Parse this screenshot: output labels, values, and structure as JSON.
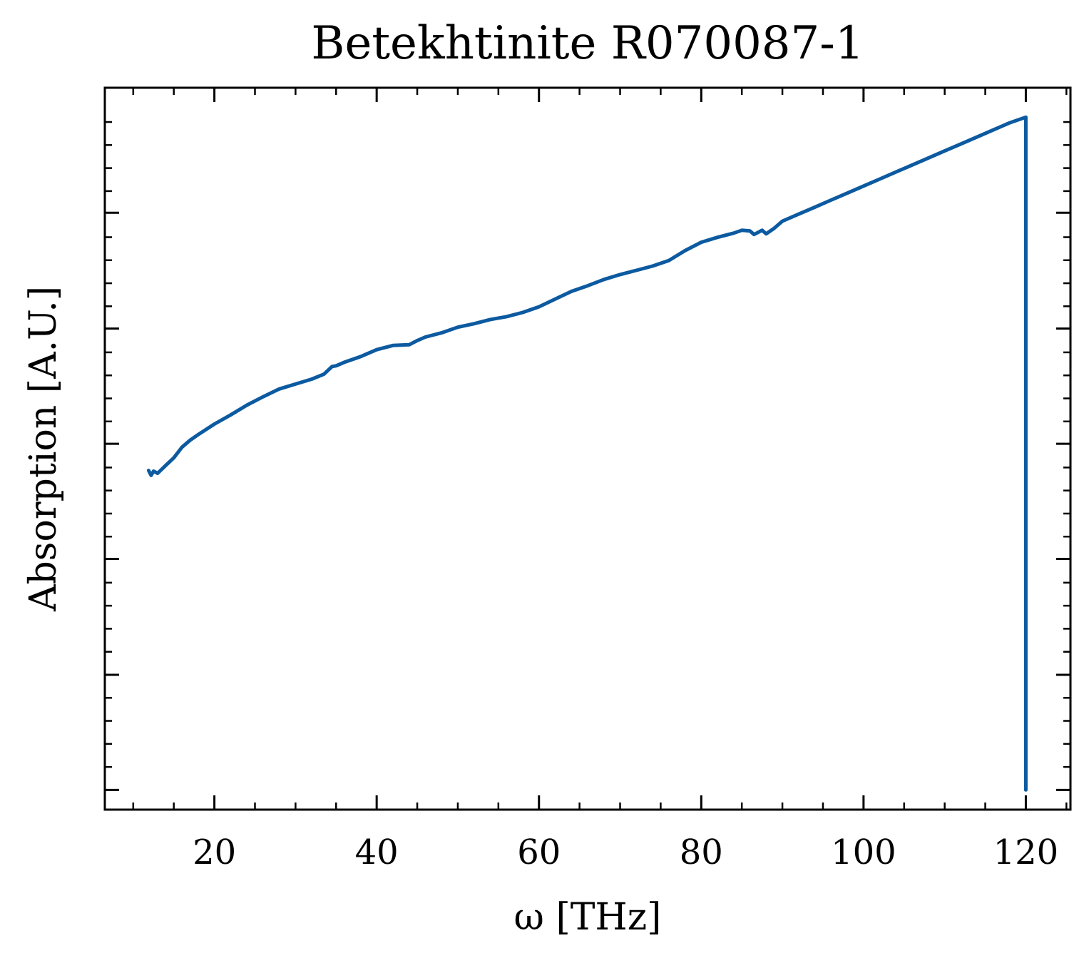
{
  "chart_data": {
    "type": "line",
    "title": "Betekhtinite R070087-1",
    "xlabel": "ω [THz]",
    "ylabel": "Absorption [A.U.]",
    "xlim": [
      6.5,
      125.5
    ],
    "ylim": [
      -0.028,
      1.0
    ],
    "x_ticks": [
      20,
      40,
      60,
      80,
      100,
      120
    ],
    "x_tick_labels": [
      "20",
      "40",
      "60",
      "80",
      "100",
      "120"
    ],
    "y_ticks": [
      0.0,
      0.164,
      0.329,
      0.493,
      0.657,
      0.822
    ],
    "y_tick_labels_shown": false,
    "grid": false,
    "legend": "none",
    "line_color": "#0c5aa0",
    "series": [
      {
        "x": [
          11.9,
          12.2,
          12.5,
          13,
          14,
          15,
          16,
          17,
          18,
          20,
          22,
          24,
          26,
          28,
          30,
          32,
          33.5,
          34.5,
          35,
          36,
          38,
          40,
          42,
          44,
          45,
          46,
          48,
          50,
          52,
          54,
          56,
          58,
          60,
          62,
          64,
          66,
          68,
          70,
          72,
          74,
          76,
          78,
          80,
          82,
          84,
          85,
          86,
          86.5,
          87,
          87.5,
          88,
          89,
          90,
          92,
          94,
          96,
          98,
          100,
          102,
          104,
          106,
          108,
          110,
          112,
          114,
          116,
          118,
          120,
          120,
          120
        ],
        "y": [
          0.455,
          0.448,
          0.454,
          0.451,
          0.462,
          0.473,
          0.488,
          0.498,
          0.506,
          0.521,
          0.534,
          0.548,
          0.56,
          0.571,
          0.578,
          0.585,
          0.592,
          0.603,
          0.604,
          0.609,
          0.617,
          0.627,
          0.633,
          0.634,
          0.64,
          0.645,
          0.651,
          0.659,
          0.664,
          0.67,
          0.674,
          0.68,
          0.688,
          0.699,
          0.71,
          0.718,
          0.727,
          0.734,
          0.74,
          0.746,
          0.754,
          0.768,
          0.78,
          0.787,
          0.793,
          0.797,
          0.796,
          0.791,
          0.794,
          0.797,
          0.792,
          0.8,
          0.81,
          0.82,
          0.83,
          0.84,
          0.85,
          0.86,
          0.87,
          0.88,
          0.89,
          0.9,
          0.91,
          0.92,
          0.93,
          0.94,
          0.95,
          0.958,
          0.5,
          0.0
        ]
      }
    ]
  }
}
